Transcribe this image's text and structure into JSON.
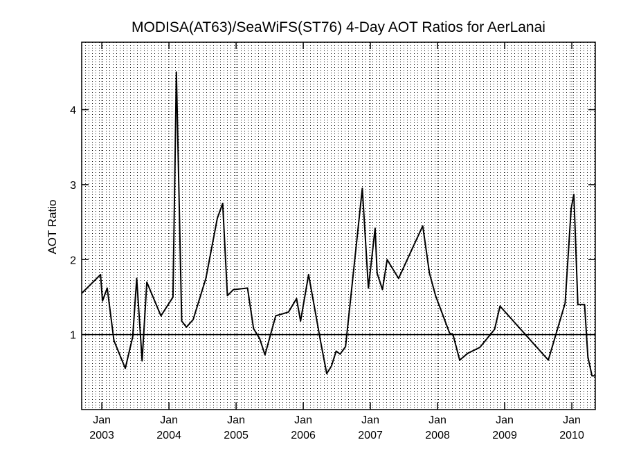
{
  "chart_data": {
    "type": "line",
    "title": "MODISA(AT63)/SeaWiFS(ST76) 4-Day AOT Ratios for AerLanai",
    "xlabel": "",
    "ylabel": "AOT Ratio",
    "xlim": [
      2002.7,
      2010.35
    ],
    "ylim": [
      0.0,
      4.9
    ],
    "x_ticks": [
      {
        "month": "Jan",
        "year": "2003",
        "x": 2003.0
      },
      {
        "month": "Jan",
        "year": "2004",
        "x": 2004.0
      },
      {
        "month": "Jan",
        "year": "2005",
        "x": 2005.0
      },
      {
        "month": "Jan",
        "year": "2006",
        "x": 2006.0
      },
      {
        "month": "Jan",
        "year": "2007",
        "x": 2007.0
      },
      {
        "month": "Jan",
        "year": "2008",
        "x": 2008.0
      },
      {
        "month": "Jan",
        "year": "2009",
        "x": 2009.0
      },
      {
        "month": "Jan",
        "year": "2010",
        "x": 2010.0
      }
    ],
    "y_ticks": [
      1,
      2,
      3,
      4
    ],
    "reference_line": 1.0,
    "grid": true,
    "series": [
      {
        "x": [
          2002.7,
          2002.98,
          2003.01,
          2003.08,
          2003.18,
          2003.35,
          2003.46,
          2003.52,
          2003.6,
          2003.67,
          2003.88,
          2004.06,
          2004.11,
          2004.19,
          2004.26,
          2004.36,
          2004.55,
          2004.72,
          2004.8,
          2004.87,
          2004.96,
          2005.17,
          2005.26,
          2005.35,
          2005.43,
          2005.59,
          2005.78,
          2005.9,
          2005.96,
          2006.08,
          2006.19,
          2006.26,
          2006.35,
          2006.42,
          2006.49,
          2006.55,
          2006.63,
          2006.88,
          2006.97,
          2007.07,
          2007.1,
          2007.18,
          2007.25,
          2007.42,
          2007.78,
          2007.88,
          2007.97,
          2008.18,
          2008.23,
          2008.33,
          2008.45,
          2008.63,
          2008.85,
          2008.93,
          2009.65,
          2009.9,
          2009.99,
          2010.03,
          2010.09,
          2010.19,
          2010.24,
          2010.3,
          2010.35
        ],
        "y": [
          1.55,
          1.8,
          1.45,
          1.62,
          0.92,
          0.55,
          0.97,
          1.75,
          0.65,
          1.7,
          1.25,
          1.5,
          4.5,
          1.18,
          1.1,
          1.2,
          1.75,
          2.55,
          2.75,
          1.52,
          1.6,
          1.62,
          1.08,
          0.95,
          0.73,
          1.25,
          1.3,
          1.48,
          1.18,
          1.8,
          1.25,
          0.9,
          0.48,
          0.58,
          0.78,
          0.74,
          0.84,
          2.95,
          1.62,
          2.42,
          1.82,
          1.6,
          2.0,
          1.75,
          2.45,
          1.82,
          1.52,
          1.02,
          1.0,
          0.66,
          0.75,
          0.83,
          1.07,
          1.38,
          0.66,
          1.42,
          2.68,
          2.87,
          1.4,
          1.4,
          0.7,
          0.45,
          0.45
        ]
      }
    ]
  }
}
